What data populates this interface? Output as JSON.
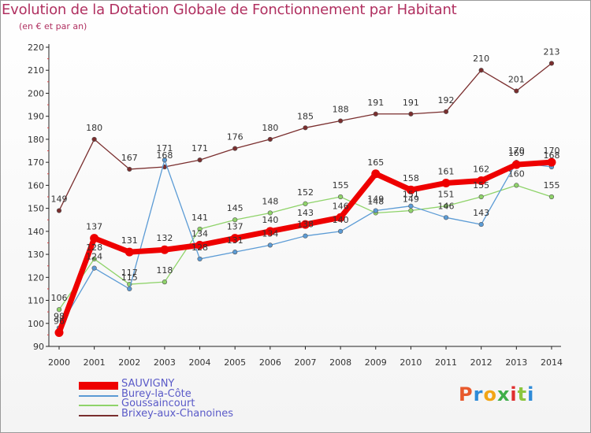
{
  "title": "Evolution de la Dotation Globale de Fonctionnement par Habitant",
  "subtitle": "(en € et par an)",
  "logo": {
    "text": "Proxiti",
    "colors": [
      "#e8592c",
      "#2e8bd8",
      "#f2a516",
      "#3fae49",
      "#e02f2f",
      "#8cc63e",
      "#2e8bd8"
    ]
  },
  "chart_data": {
    "type": "line",
    "title": "Evolution de la Dotation Globale de Fonctionnement par Habitant",
    "subtitle": "(en € et par an)",
    "xlabel": "",
    "ylabel": "",
    "x": [
      2000,
      2001,
      2002,
      2003,
      2004,
      2005,
      2006,
      2007,
      2008,
      2009,
      2010,
      2011,
      2012,
      2013,
      2014
    ],
    "ylim": [
      90,
      220
    ],
    "yticks": [
      90,
      100,
      110,
      120,
      130,
      140,
      150,
      160,
      170,
      180,
      190,
      200,
      210,
      220
    ],
    "grid": false,
    "legend_position": "bottom-left",
    "series": [
      {
        "name": "Brixey-aux-Chanoines",
        "color": "#7a2e2e",
        "values": [
          149,
          180,
          167,
          168,
          171,
          176,
          180,
          185,
          188,
          191,
          191,
          192,
          210,
          201,
          213
        ]
      },
      {
        "name": "Goussaincourt",
        "color": "#8fd36a",
        "values": [
          106,
          128,
          117,
          118,
          141,
          145,
          148,
          152,
          155,
          148,
          149,
          151,
          155,
          160,
          155
        ]
      },
      {
        "name": "Burey-la-Côte",
        "color": "#5b9bd5",
        "values": [
          98,
          124,
          115,
          171,
          128,
          131,
          134,
          138,
          140,
          149,
          151,
          146,
          143,
          170,
          168
        ]
      },
      {
        "name": "SAUVIGNY",
        "color": "#ee0000",
        "values": [
          96,
          137,
          131,
          132,
          134,
          137,
          140,
          143,
          146,
          165,
          158,
          161,
          162,
          169,
          170
        ]
      }
    ],
    "legend_order": [
      "SAUVIGNY",
      "Burey-la-Côte",
      "Goussaincourt",
      "Brixey-aux-Chanoines"
    ]
  }
}
